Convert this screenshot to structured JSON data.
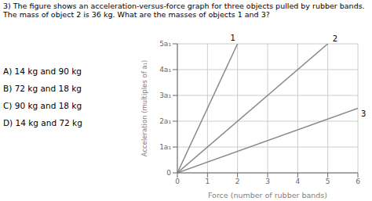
{
  "chart_data": {
    "type": "line",
    "title": "3) The figure shows an acceleration-versus-force graph for three objects pulled by rubber bands.",
    "subtitle": "The mass of object 2 is 36 kg. What are the masses of objects 1 and 3?",
    "x_label": "Force (number of rubber bands)",
    "y_label": "Acceleration (multiples of a₁)",
    "xlim": [
      0,
      6
    ],
    "ylim": [
      0,
      5
    ],
    "xticks": [
      0,
      1,
      2,
      3,
      4,
      5,
      6
    ],
    "yticks": [
      0,
      {
        "value": 1,
        "label": "1a₁"
      },
      {
        "value": 2,
        "label": "2a₁"
      },
      {
        "value": 3,
        "label": "3a₁"
      },
      {
        "value": 4,
        "label": "4a₁"
      },
      {
        "value": 5,
        "label": "5a₁"
      }
    ],
    "grid": true,
    "series": [
      {
        "name": "1",
        "color": "#888888",
        "x": [
          0,
          2
        ],
        "values": [
          0,
          5
        ]
      },
      {
        "name": "2",
        "color": "#888888",
        "x": [
          0,
          5
        ],
        "values": [
          0,
          5
        ]
      },
      {
        "name": "3",
        "color": "#888888",
        "x": [
          0,
          6
        ],
        "values": [
          0,
          2.5
        ]
      }
    ],
    "annotations": [
      "A) 14 kg and 90 kg",
      "B) 72 kg and 18 kg",
      "C) 90 kg and 18 kg",
      "D) 14 kg and 72 kg"
    ]
  }
}
